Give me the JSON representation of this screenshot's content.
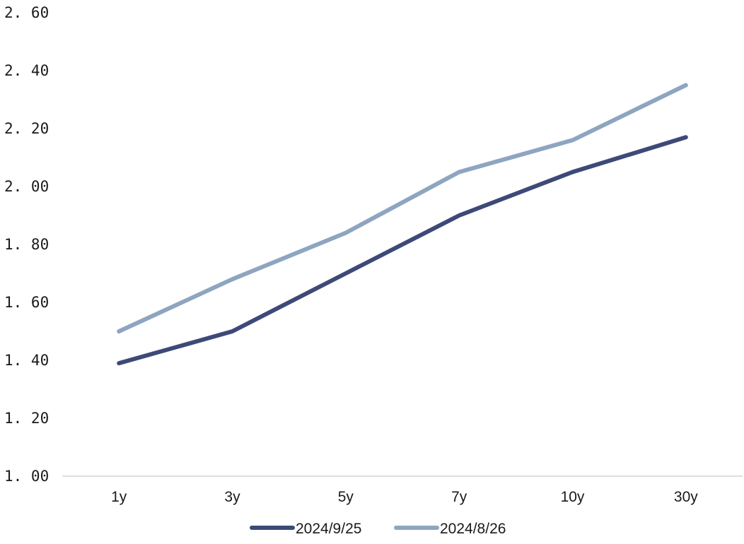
{
  "chart_data": {
    "type": "line",
    "title": "",
    "xlabel": "",
    "ylabel": "",
    "categories": [
      "1y",
      "3y",
      "5y",
      "7y",
      "10y",
      "30y"
    ],
    "ylim": [
      1.0,
      2.6
    ],
    "yticks": [
      "1. 00",
      "1. 20",
      "1. 40",
      "1. 60",
      "1. 80",
      "2. 00",
      "2. 20",
      "2. 40",
      "2. 60"
    ],
    "grid": false,
    "legend": "bottom",
    "series": [
      {
        "name": "2024/9/25",
        "color": "#3d4a78",
        "values": [
          1.39,
          1.5,
          1.7,
          1.9,
          2.05,
          2.17
        ]
      },
      {
        "name": "2024/8/26",
        "color": "#8ea5c0",
        "values": [
          1.5,
          1.68,
          1.84,
          2.05,
          2.16,
          2.35
        ]
      }
    ]
  }
}
